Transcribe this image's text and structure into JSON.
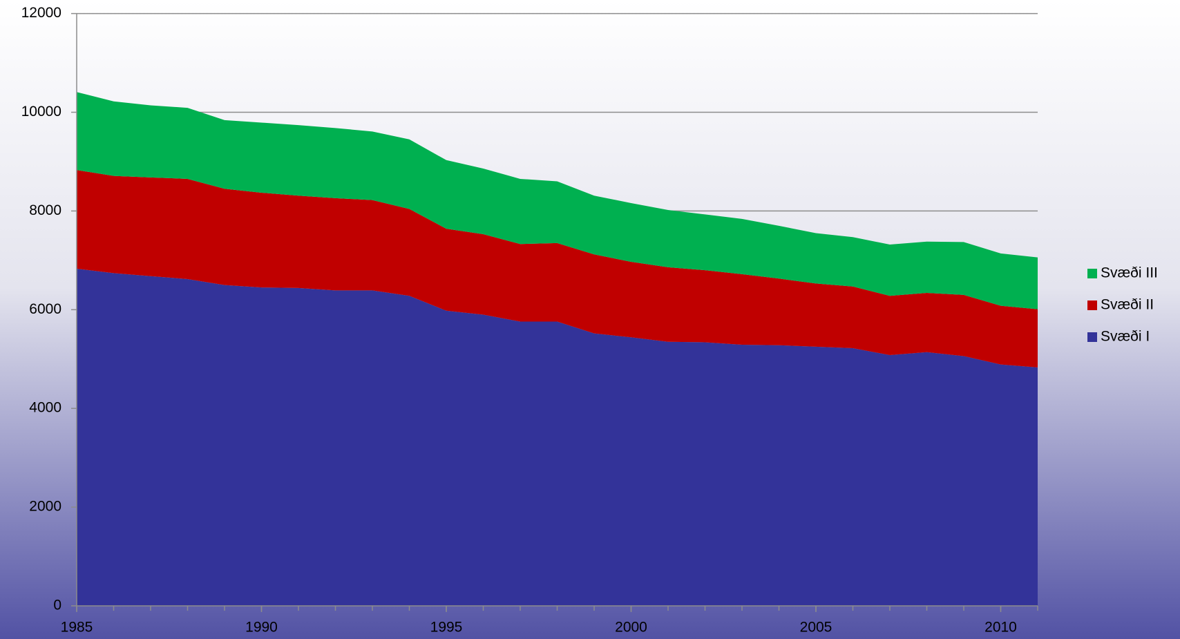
{
  "chart_data": {
    "type": "stacked_area",
    "x": [
      1985,
      1986,
      1987,
      1988,
      1989,
      1990,
      1991,
      1992,
      1993,
      1994,
      1995,
      1996,
      1997,
      1998,
      1999,
      2000,
      2001,
      2002,
      2003,
      2004,
      2005,
      2006,
      2007,
      2008,
      2009,
      2010,
      2011
    ],
    "series": [
      {
        "name": "Svæði I",
        "color": "#333399",
        "values": [
          6830,
          6740,
          6680,
          6620,
          6500,
          6450,
          6440,
          6390,
          6390,
          6280,
          5980,
          5900,
          5760,
          5760,
          5520,
          5440,
          5350,
          5340,
          5290,
          5280,
          5250,
          5220,
          5080,
          5140,
          5060,
          4890,
          4830
        ]
      },
      {
        "name": "Svæði II",
        "color": "#c00000",
        "values": [
          2000,
          1970,
          2000,
          2030,
          1950,
          1920,
          1870,
          1870,
          1830,
          1760,
          1660,
          1630,
          1570,
          1590,
          1600,
          1530,
          1510,
          1460,
          1430,
          1350,
          1280,
          1250,
          1200,
          1200,
          1240,
          1190,
          1180
        ]
      },
      {
        "name": "Svæði III",
        "color": "#00b050",
        "values": [
          1580,
          1510,
          1460,
          1440,
          1390,
          1420,
          1430,
          1420,
          1390,
          1410,
          1390,
          1330,
          1320,
          1250,
          1190,
          1190,
          1160,
          1130,
          1120,
          1070,
          1020,
          1000,
          1040,
          1040,
          1070,
          1060,
          1050
        ]
      }
    ],
    "xlim": [
      1985,
      2011
    ],
    "xticks": [
      1985,
      1990,
      1995,
      2000,
      2005,
      2010
    ],
    "ylim": [
      0,
      12000
    ],
    "yticks": [
      0,
      2000,
      4000,
      6000,
      8000,
      10000,
      12000
    ],
    "grid": true,
    "legend": "right"
  }
}
